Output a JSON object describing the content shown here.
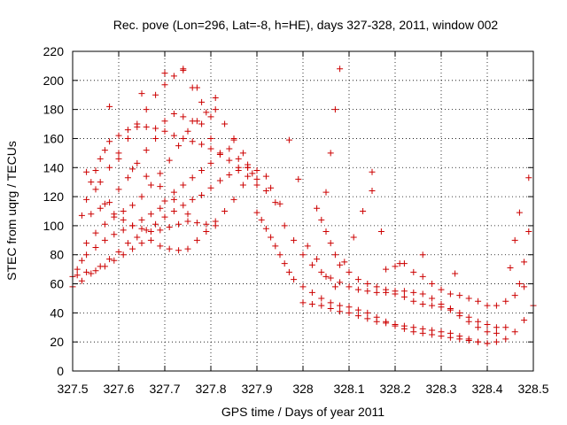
{
  "chart_data": {
    "type": "scatter",
    "title": "Rec. pove (Lon=296, Lat=-8, h=HE), days 327-328, 2011, window 002",
    "xlabel": "GPS time / Days of year 2011",
    "ylabel": "STEC from uqrg / TECUs",
    "xlim": [
      327.5,
      328.5
    ],
    "ylim": [
      0,
      220
    ],
    "x_ticks": [
      "327.5",
      "327.6",
      "327.7",
      "327.8",
      "327.9",
      "328",
      "328.1",
      "328.2",
      "328.3",
      "328.4",
      "328.5"
    ],
    "y_ticks": [
      "0",
      "20",
      "40",
      "60",
      "80",
      "100",
      "120",
      "140",
      "160",
      "180",
      "200",
      "220"
    ],
    "marker": "+",
    "color": "#cc0000",
    "grid": true,
    "legend": "none",
    "series": [
      {
        "points": [
          [
            327.5,
            65
          ],
          [
            327.51,
            70
          ],
          [
            327.52,
            76
          ],
          [
            327.53,
            80
          ],
          [
            327.55,
            85
          ],
          [
            327.57,
            90
          ],
          [
            327.59,
            94
          ],
          [
            327.61,
            97
          ],
          [
            327.63,
            100
          ],
          [
            327.65,
            104
          ],
          [
            327.67,
            108
          ],
          [
            327.69,
            112
          ],
          [
            327.7,
            117
          ],
          [
            327.72,
            123
          ],
          [
            327.74,
            128
          ],
          [
            327.76,
            133
          ],
          [
            327.78,
            138
          ],
          [
            327.8,
            143
          ],
          [
            327.82,
            149
          ],
          [
            327.84,
            153
          ],
          [
            327.86,
            146
          ],
          [
            327.88,
            140
          ],
          [
            327.9,
            132
          ],
          [
            327.92,
            124
          ],
          [
            327.94,
            116
          ],
          [
            327.5,
            58
          ],
          [
            327.52,
            62
          ],
          [
            327.54,
            67
          ],
          [
            327.56,
            72
          ],
          [
            327.58,
            77
          ],
          [
            327.6,
            82
          ],
          [
            327.62,
            88
          ],
          [
            327.64,
            92
          ],
          [
            327.66,
            97
          ],
          [
            327.68,
            101
          ],
          [
            327.7,
            106
          ],
          [
            327.72,
            110
          ],
          [
            327.74,
            114
          ],
          [
            327.76,
            118
          ],
          [
            327.78,
            121
          ],
          [
            327.8,
            126
          ],
          [
            327.82,
            131
          ],
          [
            327.84,
            135
          ],
          [
            327.86,
            138
          ],
          [
            327.88,
            140
          ],
          [
            327.9,
            138
          ],
          [
            327.92,
            134
          ],
          [
            327.51,
            66
          ],
          [
            327.53,
            68
          ],
          [
            327.55,
            69
          ],
          [
            327.57,
            72
          ],
          [
            327.59,
            76
          ],
          [
            327.61,
            80
          ],
          [
            327.63,
            84
          ],
          [
            327.65,
            88
          ],
          [
            327.67,
            90
          ],
          [
            327.69,
            86
          ],
          [
            327.71,
            84
          ],
          [
            327.73,
            83
          ],
          [
            327.75,
            84
          ],
          [
            327.77,
            90
          ],
          [
            327.79,
            96
          ],
          [
            327.81,
            103
          ],
          [
            327.83,
            110
          ],
          [
            327.85,
            118
          ],
          [
            327.87,
            128
          ],
          [
            327.89,
            136
          ],
          [
            327.52,
            107
          ],
          [
            327.53,
            118
          ],
          [
            327.54,
            130
          ],
          [
            327.55,
            138
          ],
          [
            327.56,
            146
          ],
          [
            327.57,
            152
          ],
          [
            327.58,
            158
          ],
          [
            327.6,
            162
          ],
          [
            327.62,
            166
          ],
          [
            327.64,
            168
          ],
          [
            327.66,
            168
          ],
          [
            327.68,
            167
          ],
          [
            327.7,
            165
          ],
          [
            327.72,
            162
          ],
          [
            327.74,
            160
          ],
          [
            327.76,
            158
          ],
          [
            327.78,
            156
          ],
          [
            327.8,
            153
          ],
          [
            327.82,
            150
          ],
          [
            327.84,
            145
          ],
          [
            327.86,
            140
          ],
          [
            327.88,
            134
          ],
          [
            327.9,
            128
          ],
          [
            327.53,
            88
          ],
          [
            327.55,
            95
          ],
          [
            327.57,
            101
          ],
          [
            327.59,
            106
          ],
          [
            327.61,
            110
          ],
          [
            327.63,
            114
          ],
          [
            327.65,
            120
          ],
          [
            327.67,
            128
          ],
          [
            327.69,
            136
          ],
          [
            327.71,
            145
          ],
          [
            327.73,
            155
          ],
          [
            327.75,
            165
          ],
          [
            327.77,
            172
          ],
          [
            327.79,
            178
          ],
          [
            327.81,
            180
          ],
          [
            327.83,
            170
          ],
          [
            327.85,
            160
          ],
          [
            327.87,
            150
          ],
          [
            327.56,
            130
          ],
          [
            327.58,
            140
          ],
          [
            327.6,
            150
          ],
          [
            327.62,
            160
          ],
          [
            327.64,
            170
          ],
          [
            327.66,
            180
          ],
          [
            327.68,
            190
          ],
          [
            327.7,
            197
          ],
          [
            327.72,
            203
          ],
          [
            327.74,
            207
          ],
          [
            327.76,
            195
          ],
          [
            327.78,
            185
          ],
          [
            327.8,
            175
          ],
          [
            327.53,
            137
          ],
          [
            327.55,
            125
          ],
          [
            327.57,
            115
          ],
          [
            327.59,
            108
          ],
          [
            327.61,
            104
          ],
          [
            327.63,
            100
          ],
          [
            327.65,
            98
          ],
          [
            327.67,
            96
          ],
          [
            327.69,
            97
          ],
          [
            327.71,
            99
          ],
          [
            327.73,
            101
          ],
          [
            327.75,
            103
          ],
          [
            327.77,
            102
          ],
          [
            327.79,
            101
          ],
          [
            327.81,
            100
          ],
          [
            327.54,
            108
          ],
          [
            327.56,
            112
          ],
          [
            327.58,
            116
          ],
          [
            327.6,
            125
          ],
          [
            327.62,
            133
          ],
          [
            327.64,
            143
          ],
          [
            327.66,
            152
          ],
          [
            327.68,
            160
          ],
          [
            327.7,
            172
          ],
          [
            327.72,
            177
          ],
          [
            327.74,
            175
          ],
          [
            327.76,
            172
          ],
          [
            327.78,
            170
          ],
          [
            327.8,
            160
          ],
          [
            327.58,
            182
          ],
          [
            327.65,
            191
          ],
          [
            327.7,
            205
          ],
          [
            327.74,
            208
          ],
          [
            327.77,
            195
          ],
          [
            327.81,
            188
          ],
          [
            327.6,
            146
          ],
          [
            327.63,
            139
          ],
          [
            327.66,
            134
          ],
          [
            327.69,
            127
          ],
          [
            327.72,
            118
          ],
          [
            327.75,
            108
          ],
          [
            327.9,
            109
          ],
          [
            327.91,
            104
          ],
          [
            327.92,
            98
          ],
          [
            327.93,
            92
          ],
          [
            327.94,
            86
          ],
          [
            327.95,
            80
          ],
          [
            327.96,
            74
          ],
          [
            327.97,
            68
          ],
          [
            327.98,
            63
          ],
          [
            328.0,
            58
          ],
          [
            328.02,
            54
          ],
          [
            328.04,
            50
          ],
          [
            328.06,
            47
          ],
          [
            328.08,
            45
          ],
          [
            328.1,
            44
          ],
          [
            328.12,
            42
          ],
          [
            328.14,
            40
          ],
          [
            328.16,
            37
          ],
          [
            328.18,
            34
          ],
          [
            328.2,
            31
          ],
          [
            328.22,
            29
          ],
          [
            328.24,
            27
          ],
          [
            328.26,
            26
          ],
          [
            328.28,
            25
          ],
          [
            328.3,
            24
          ],
          [
            328.32,
            23
          ],
          [
            328.34,
            22
          ],
          [
            328.36,
            21
          ],
          [
            328.38,
            20
          ],
          [
            328.4,
            19
          ],
          [
            328.42,
            20
          ],
          [
            328.44,
            22
          ],
          [
            328.46,
            27
          ],
          [
            328.48,
            35
          ],
          [
            328.5,
            45
          ],
          [
            327.96,
            100
          ],
          [
            327.98,
            90
          ],
          [
            328.0,
            80
          ],
          [
            328.02,
            73
          ],
          [
            328.04,
            68
          ],
          [
            328.06,
            64
          ],
          [
            328.08,
            61
          ],
          [
            328.1,
            58
          ],
          [
            328.12,
            56
          ],
          [
            328.14,
            55
          ],
          [
            328.16,
            54
          ],
          [
            328.18,
            54
          ],
          [
            328.2,
            53
          ],
          [
            328.22,
            51
          ],
          [
            328.24,
            48
          ],
          [
            328.26,
            46
          ],
          [
            328.28,
            45
          ],
          [
            328.3,
            44
          ],
          [
            328.32,
            43
          ],
          [
            328.34,
            40
          ],
          [
            328.36,
            37
          ],
          [
            328.38,
            34
          ],
          [
            328.4,
            32
          ],
          [
            328.42,
            30
          ],
          [
            328.44,
            30
          ],
          [
            328.03,
            112
          ],
          [
            328.04,
            104
          ],
          [
            328.05,
            96
          ],
          [
            328.06,
            88
          ],
          [
            328.07,
            80
          ],
          [
            328.08,
            73
          ],
          [
            328.1,
            68
          ],
          [
            328.12,
            63
          ],
          [
            328.14,
            60
          ],
          [
            328.16,
            58
          ],
          [
            328.18,
            56
          ],
          [
            328.2,
            55
          ],
          [
            328.22,
            55
          ],
          [
            328.24,
            54
          ],
          [
            328.26,
            53
          ],
          [
            328.28,
            50
          ],
          [
            328.3,
            46
          ],
          [
            328.32,
            42
          ],
          [
            328.34,
            38
          ],
          [
            328.36,
            34
          ],
          [
            328.38,
            30
          ],
          [
            328.4,
            27
          ],
          [
            328.42,
            26
          ],
          [
            328.0,
            47
          ],
          [
            328.02,
            46
          ],
          [
            328.04,
            45
          ],
          [
            328.06,
            43
          ],
          [
            328.08,
            41
          ],
          [
            328.1,
            40
          ],
          [
            328.12,
            38
          ],
          [
            328.14,
            36
          ],
          [
            328.16,
            34
          ],
          [
            328.18,
            33
          ],
          [
            328.2,
            32
          ],
          [
            328.22,
            31
          ],
          [
            328.24,
            30
          ],
          [
            328.26,
            29
          ],
          [
            328.28,
            28
          ],
          [
            328.3,
            27
          ],
          [
            328.32,
            26
          ],
          [
            328.34,
            24
          ],
          [
            328.36,
            22
          ],
          [
            328.38,
            20
          ],
          [
            328.4,
            19
          ],
          [
            328.05,
            123
          ],
          [
            328.06,
            150
          ],
          [
            328.07,
            180
          ],
          [
            328.08,
            208
          ],
          [
            328.09,
            75
          ],
          [
            328.11,
            92
          ],
          [
            328.13,
            110
          ],
          [
            328.15,
            137
          ],
          [
            328.15,
            124
          ],
          [
            328.17,
            96
          ],
          [
            328.21,
            74
          ],
          [
            328.26,
            80
          ],
          [
            328.33,
            67
          ],
          [
            328.45,
            71
          ],
          [
            328.46,
            90
          ],
          [
            328.47,
            109
          ],
          [
            328.49,
            133
          ],
          [
            328.49,
            96
          ],
          [
            328.48,
            75
          ],
          [
            328.47,
            60
          ],
          [
            328.18,
            70
          ],
          [
            328.2,
            72
          ],
          [
            328.22,
            74
          ],
          [
            328.24,
            68
          ],
          [
            328.26,
            65
          ],
          [
            328.28,
            60
          ],
          [
            328.3,
            56
          ],
          [
            328.32,
            53
          ],
          [
            328.34,
            52
          ],
          [
            328.36,
            50
          ],
          [
            328.38,
            48
          ],
          [
            328.4,
            45
          ],
          [
            328.42,
            45
          ],
          [
            328.44,
            48
          ],
          [
            328.46,
            52
          ],
          [
            328.48,
            58
          ],
          [
            327.85,
            159
          ],
          [
            327.88,
            142
          ],
          [
            327.97,
            159
          ],
          [
            327.99,
            132
          ],
          [
            327.95,
            115
          ],
          [
            327.93,
            126
          ],
          [
            328.01,
            86
          ],
          [
            328.03,
            77
          ],
          [
            328.05,
            65
          ],
          [
            328.07,
            58
          ]
        ]
      }
    ]
  }
}
